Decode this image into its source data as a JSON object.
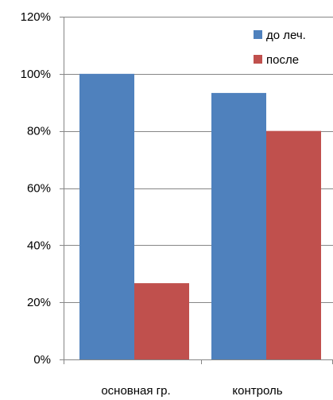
{
  "chart_data": {
    "type": "bar",
    "categories": [
      "основная гр.",
      "контроль"
    ],
    "series": [
      {
        "name": "до леч.",
        "values": [
          100,
          93.3
        ],
        "color": "#4f81bd"
      },
      {
        "name": "после",
        "values": [
          26.7,
          80
        ],
        "color": "#c0504d"
      }
    ],
    "y_ticks": [
      "0%",
      "20%",
      "40%",
      "60%",
      "80%",
      "100%",
      "120%"
    ],
    "y_tick_values": [
      0,
      20,
      40,
      60,
      80,
      100,
      120
    ],
    "ylim": [
      0,
      120
    ],
    "y_unit": "percent",
    "grid": "horizontal",
    "legend_position": "top-right",
    "colors": {
      "axis": "#868686",
      "grid": "#868686"
    }
  }
}
